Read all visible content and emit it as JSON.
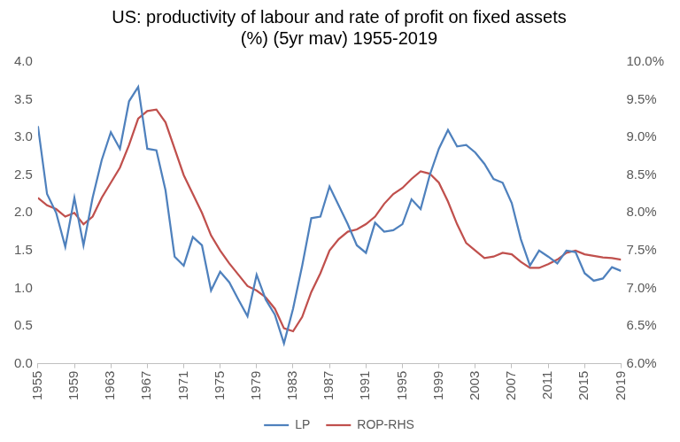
{
  "chart_data": {
    "type": "line",
    "title": [
      "US: productivity of labour and rate of profit on fixed assets",
      "(%) (5yr mav) 1955-2019"
    ],
    "x": [
      1955,
      1956,
      1957,
      1958,
      1959,
      1960,
      1961,
      1962,
      1963,
      1964,
      1965,
      1966,
      1967,
      1968,
      1969,
      1970,
      1971,
      1972,
      1973,
      1974,
      1975,
      1976,
      1977,
      1978,
      1979,
      1980,
      1981,
      1982,
      1983,
      1984,
      1985,
      1986,
      1987,
      1988,
      1989,
      1990,
      1991,
      1992,
      1993,
      1994,
      1995,
      1996,
      1997,
      1998,
      1999,
      2000,
      2001,
      2002,
      2003,
      2004,
      2005,
      2006,
      2007,
      2008,
      2009,
      2010,
      2011,
      2012,
      2013,
      2014,
      2015,
      2016,
      2017,
      2018,
      2019
    ],
    "series": [
      {
        "name": "LP",
        "color": "#4f81bd",
        "marker": "none",
        "line_style": "solid",
        "values": [
          3.15,
          2.25,
          2.0,
          1.55,
          2.2,
          1.57,
          2.2,
          2.7,
          3.07,
          2.85,
          3.48,
          3.67,
          2.85,
          2.83,
          2.3,
          1.42,
          1.3,
          1.68,
          1.57,
          0.97,
          1.22,
          1.08,
          0.85,
          0.63,
          1.18,
          0.85,
          0.65,
          0.27,
          0.73,
          1.3,
          1.93,
          1.95,
          2.35,
          2.1,
          1.85,
          1.57,
          1.47,
          1.87,
          1.75,
          1.77,
          1.85,
          2.18,
          2.05,
          2.5,
          2.85,
          3.1,
          2.88,
          2.9,
          2.8,
          2.65,
          2.45,
          2.4,
          2.13,
          1.65,
          1.3,
          1.5,
          1.42,
          1.33,
          1.5,
          1.48,
          1.2,
          1.1,
          1.13,
          1.28,
          1.23
        ]
      },
      {
        "name": "ROP-RHS",
        "color": "#c0504d",
        "marker": "none",
        "line_style": "solid",
        "axis": "y2",
        "values": [
          8.2,
          8.1,
          8.05,
          7.95,
          8.0,
          7.85,
          7.95,
          8.2,
          8.4,
          8.6,
          8.9,
          9.25,
          9.35,
          9.37,
          9.2,
          8.85,
          8.5,
          8.25,
          8.0,
          7.7,
          7.5,
          7.33,
          7.18,
          7.03,
          6.97,
          6.88,
          6.73,
          6.47,
          6.43,
          6.62,
          6.95,
          7.2,
          7.5,
          7.65,
          7.75,
          7.78,
          7.85,
          7.95,
          8.12,
          8.25,
          8.33,
          8.45,
          8.55,
          8.52,
          8.4,
          8.15,
          7.85,
          7.6,
          7.5,
          7.4,
          7.42,
          7.47,
          7.45,
          7.35,
          7.27,
          7.27,
          7.32,
          7.38,
          7.47,
          7.5,
          7.45,
          7.43,
          7.41,
          7.4,
          7.38
        ]
      }
    ],
    "xlim": [
      1955,
      2019
    ],
    "xticks": [
      1955,
      1959,
      1963,
      1967,
      1971,
      1975,
      1979,
      1983,
      1987,
      1991,
      1995,
      1999,
      2003,
      2007,
      2011,
      2015,
      2019
    ],
    "ylim": [
      0,
      4
    ],
    "yticks": [
      {
        "value": 0,
        "label": "0.0"
      },
      {
        "value": 0.5,
        "label": "0.5"
      },
      {
        "value": 1,
        "label": "1.0"
      },
      {
        "value": 1.5,
        "label": "1.5"
      },
      {
        "value": 2,
        "label": "2.0"
      },
      {
        "value": 2.5,
        "label": "2.5"
      },
      {
        "value": 3,
        "label": "3.0"
      },
      {
        "value": 3.5,
        "label": "3.5"
      },
      {
        "value": 4,
        "label": "4.0"
      }
    ],
    "y2lim": [
      6,
      10
    ],
    "y2ticks": [
      {
        "value": 6,
        "label": "6.0%"
      },
      {
        "value": 6.5,
        "label": "6.5%"
      },
      {
        "value": 7,
        "label": "7.0%"
      },
      {
        "value": 7.5,
        "label": "7.5%"
      },
      {
        "value": 8,
        "label": "8.0%"
      },
      {
        "value": 8.5,
        "label": "8.5%"
      },
      {
        "value": 9,
        "label": "9.0%"
      },
      {
        "value": 9.5,
        "label": "9.5%"
      },
      {
        "value": 10,
        "label": "10.0%"
      }
    ],
    "grid": false,
    "legend": "bottom"
  }
}
